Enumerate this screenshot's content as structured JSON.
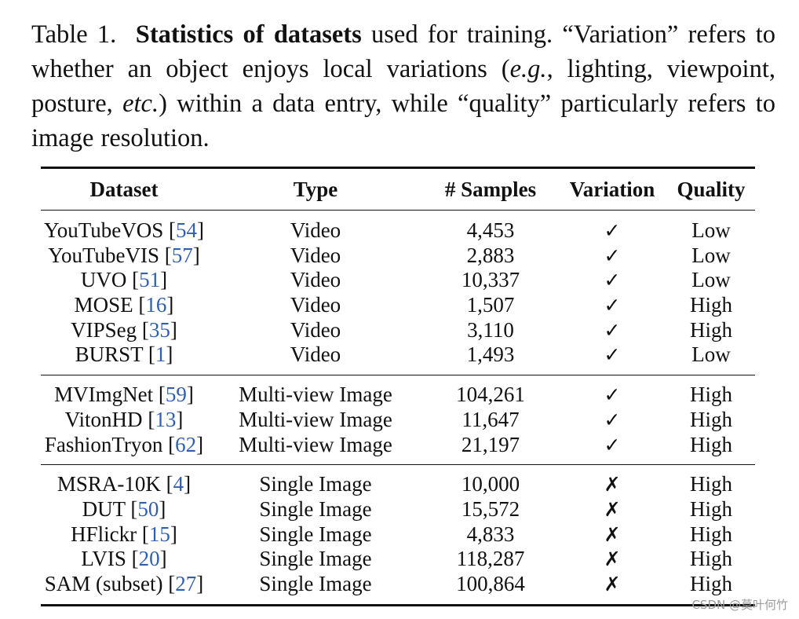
{
  "caption": {
    "label": "Table 1.",
    "bold": "Statistics of datasets",
    "part1": " used for training. “Variation” refers to whether an object enjoys local variations (",
    "italic1": "e.g.",
    "part2": ", lighting, viewpoint, posture, ",
    "italic2": "etc.",
    "part3": ")  within a data entry, while “quality” particularly refers to image resolution."
  },
  "table": {
    "headers": [
      "Dataset",
      "Type",
      "# Samples",
      "Variation",
      "Quality"
    ],
    "groups": [
      [
        {
          "name": "YouTubeVOS",
          "ref": "54",
          "type": "Video",
          "samples": "4,453",
          "variation": "✓",
          "quality": "Low"
        },
        {
          "name": "YouTubeVIS",
          "ref": "57",
          "type": "Video",
          "samples": "2,883",
          "variation": "✓",
          "quality": "Low"
        },
        {
          "name": "UVO",
          "ref": "51",
          "type": "Video",
          "samples": "10,337",
          "variation": "✓",
          "quality": "Low"
        },
        {
          "name": "MOSE",
          "ref": "16",
          "type": "Video",
          "samples": "1,507",
          "variation": "✓",
          "quality": "High"
        },
        {
          "name": "VIPSeg",
          "ref": "35",
          "type": "Video",
          "samples": "3,110",
          "variation": "✓",
          "quality": "High"
        },
        {
          "name": "BURST",
          "ref": "1",
          "type": "Video",
          "samples": "1,493",
          "variation": "✓",
          "quality": "Low"
        }
      ],
      [
        {
          "name": "MVImgNet",
          "ref": "59",
          "type": "Multi-view Image",
          "samples": "104,261",
          "variation": "✓",
          "quality": "High"
        },
        {
          "name": "VitonHD",
          "ref": "13",
          "type": "Multi-view Image",
          "samples": "11,647",
          "variation": "✓",
          "quality": "High"
        },
        {
          "name": "FashionTryon",
          "ref": "62",
          "type": "Multi-view Image",
          "samples": "21,197",
          "variation": "✓",
          "quality": "High"
        }
      ],
      [
        {
          "name": "MSRA-10K",
          "ref": "4",
          "type": "Single Image",
          "samples": "10,000",
          "variation": "✗",
          "quality": "High"
        },
        {
          "name": "DUT",
          "ref": "50",
          "type": "Single Image",
          "samples": "15,572",
          "variation": "✗",
          "quality": "High"
        },
        {
          "name": "HFlickr",
          "ref": "15",
          "type": "Single Image",
          "samples": "4,833",
          "variation": "✗",
          "quality": "High"
        },
        {
          "name": "LVIS",
          "ref": "20",
          "type": "Single Image",
          "samples": "118,287",
          "variation": "✗",
          "quality": "High"
        },
        {
          "name": "SAM (subset)",
          "ref": "27",
          "type": "Single Image",
          "samples": "100,864",
          "variation": "✗",
          "quality": "High"
        }
      ]
    ]
  },
  "watermark": "CSDN @莫叶何竹"
}
